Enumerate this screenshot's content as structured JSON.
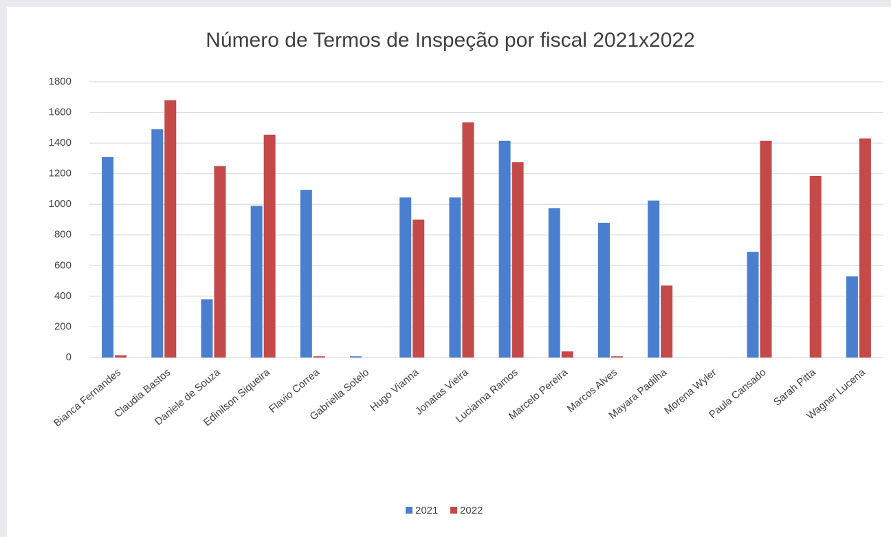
{
  "chart_data": {
    "type": "bar",
    "title": "Número de Termos de Inspeção por fiscal 2021x2022",
    "categories": [
      "Bianca Fernandes",
      "Claudia Bastos",
      "Daniele de Souza",
      "Edinilson Siqueira",
      "Flavio Correa",
      "Gabriella Sotelo",
      "Hugo Vianna",
      "Jonatas Vieira",
      "Lucianna Ramos",
      "Marcelo Pereira",
      "Marcos Alves",
      "Mayara Padilha",
      "Morena Wyler",
      "Paula Cansado",
      "Sarah Pitta",
      "Wagner Lucena"
    ],
    "series": [
      {
        "name": "2021",
        "color": "#4a7fd0",
        "values": [
          1310,
          1490,
          380,
          990,
          1095,
          8,
          1045,
          1045,
          1415,
          975,
          880,
          1025,
          0,
          690,
          0,
          530
        ]
      },
      {
        "name": "2022",
        "color": "#c44a4a",
        "values": [
          15,
          1680,
          1250,
          1455,
          8,
          0,
          900,
          1535,
          1275,
          40,
          8,
          470,
          0,
          1415,
          1185,
          1430
        ]
      }
    ],
    "ylim": [
      0,
      1800
    ],
    "yticks": [
      0,
      200,
      400,
      600,
      800,
      1000,
      1200,
      1400,
      1600,
      1800
    ],
    "grid": true,
    "legend": "bottom"
  }
}
